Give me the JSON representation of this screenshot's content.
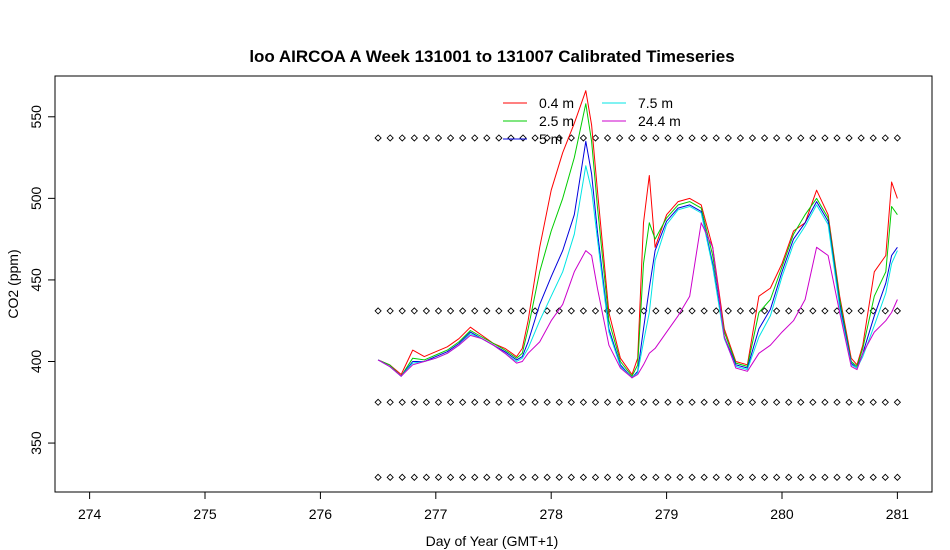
{
  "chart_data": {
    "type": "line",
    "title": "loo AIRCOA A  Week 131001 to 131007  Calibrated Timeseries",
    "xlabel": "Day of Year (GMT+1)",
    "ylabel": "CO2 (ppm)",
    "xlim": [
      273.7,
      281.3
    ],
    "ylim": [
      320,
      575
    ],
    "x_ticks": [
      274,
      275,
      276,
      277,
      278,
      279,
      280,
      281
    ],
    "y_ticks": [
      350,
      400,
      450,
      500,
      550
    ],
    "grid": false,
    "legend_position": "top-center",
    "series": [
      {
        "name": "0.4 m",
        "color": "#ff0000",
        "points": [
          [
            276.5,
            401
          ],
          [
            276.6,
            398
          ],
          [
            276.7,
            392
          ],
          [
            276.8,
            407
          ],
          [
            276.9,
            403
          ],
          [
            277.0,
            406
          ],
          [
            277.1,
            409
          ],
          [
            277.2,
            414
          ],
          [
            277.3,
            421
          ],
          [
            277.4,
            416
          ],
          [
            277.5,
            411
          ],
          [
            277.6,
            408
          ],
          [
            277.7,
            403
          ],
          [
            277.75,
            408
          ],
          [
            277.8,
            425
          ],
          [
            277.9,
            470
          ],
          [
            278.0,
            505
          ],
          [
            278.1,
            528
          ],
          [
            278.2,
            546
          ],
          [
            278.3,
            566
          ],
          [
            278.35,
            545
          ],
          [
            278.4,
            505
          ],
          [
            278.5,
            430
          ],
          [
            278.6,
            402
          ],
          [
            278.7,
            392
          ],
          [
            278.75,
            402
          ],
          [
            278.8,
            485
          ],
          [
            278.85,
            514
          ],
          [
            278.9,
            470
          ],
          [
            279.0,
            490
          ],
          [
            279.1,
            498
          ],
          [
            279.2,
            500
          ],
          [
            279.3,
            496
          ],
          [
            279.4,
            470
          ],
          [
            279.5,
            420
          ],
          [
            279.6,
            400
          ],
          [
            279.7,
            398
          ],
          [
            279.8,
            440
          ],
          [
            279.9,
            445
          ],
          [
            280.0,
            460
          ],
          [
            280.1,
            480
          ],
          [
            280.2,
            485
          ],
          [
            280.3,
            505
          ],
          [
            280.4,
            490
          ],
          [
            280.5,
            440
          ],
          [
            280.6,
            402
          ],
          [
            280.65,
            398
          ],
          [
            280.7,
            410
          ],
          [
            280.8,
            455
          ],
          [
            280.9,
            465
          ],
          [
            280.95,
            510
          ],
          [
            281.0,
            500
          ]
        ]
      },
      {
        "name": "2.5 m",
        "color": "#00cc00",
        "points": [
          [
            276.5,
            401
          ],
          [
            276.6,
            398
          ],
          [
            276.7,
            391
          ],
          [
            276.8,
            402
          ],
          [
            276.9,
            401
          ],
          [
            277.0,
            404
          ],
          [
            277.1,
            407
          ],
          [
            277.2,
            412
          ],
          [
            277.3,
            419
          ],
          [
            277.4,
            415
          ],
          [
            277.5,
            411
          ],
          [
            277.6,
            407
          ],
          [
            277.7,
            402
          ],
          [
            277.75,
            405
          ],
          [
            277.8,
            420
          ],
          [
            277.9,
            455
          ],
          [
            278.0,
            480
          ],
          [
            278.1,
            500
          ],
          [
            278.2,
            525
          ],
          [
            278.3,
            558
          ],
          [
            278.35,
            535
          ],
          [
            278.4,
            495
          ],
          [
            278.5,
            425
          ],
          [
            278.6,
            400
          ],
          [
            278.7,
            391
          ],
          [
            278.75,
            398
          ],
          [
            278.8,
            460
          ],
          [
            278.85,
            485
          ],
          [
            278.9,
            475
          ],
          [
            279.0,
            488
          ],
          [
            279.1,
            496
          ],
          [
            279.2,
            498
          ],
          [
            279.3,
            494
          ],
          [
            279.4,
            465
          ],
          [
            279.5,
            418
          ],
          [
            279.6,
            399
          ],
          [
            279.7,
            397
          ],
          [
            279.8,
            430
          ],
          [
            279.9,
            438
          ],
          [
            280.0,
            458
          ],
          [
            280.1,
            478
          ],
          [
            280.2,
            490
          ],
          [
            280.3,
            500
          ],
          [
            280.4,
            488
          ],
          [
            280.5,
            438
          ],
          [
            280.6,
            400
          ],
          [
            280.65,
            397
          ],
          [
            280.7,
            408
          ],
          [
            280.8,
            440
          ],
          [
            280.9,
            455
          ],
          [
            280.95,
            495
          ],
          [
            281.0,
            490
          ]
        ]
      },
      {
        "name": "5 m",
        "color": "#0000dd",
        "points": [
          [
            276.5,
            401
          ],
          [
            276.6,
            397
          ],
          [
            276.7,
            391
          ],
          [
            276.8,
            400
          ],
          [
            276.9,
            400
          ],
          [
            277.0,
            403
          ],
          [
            277.1,
            406
          ],
          [
            277.2,
            411
          ],
          [
            277.3,
            418
          ],
          [
            277.4,
            414
          ],
          [
            277.5,
            410
          ],
          [
            277.6,
            406
          ],
          [
            277.7,
            401
          ],
          [
            277.75,
            403
          ],
          [
            277.8,
            412
          ],
          [
            277.9,
            435
          ],
          [
            278.0,
            452
          ],
          [
            278.1,
            468
          ],
          [
            278.2,
            490
          ],
          [
            278.3,
            535
          ],
          [
            278.35,
            515
          ],
          [
            278.4,
            480
          ],
          [
            278.5,
            420
          ],
          [
            278.6,
            398
          ],
          [
            278.7,
            390
          ],
          [
            278.75,
            394
          ],
          [
            278.8,
            420
          ],
          [
            278.85,
            445
          ],
          [
            278.9,
            468
          ],
          [
            279.0,
            486
          ],
          [
            279.1,
            494
          ],
          [
            279.2,
            496
          ],
          [
            279.3,
            492
          ],
          [
            279.4,
            460
          ],
          [
            279.5,
            415
          ],
          [
            279.6,
            398
          ],
          [
            279.7,
            396
          ],
          [
            279.8,
            420
          ],
          [
            279.9,
            432
          ],
          [
            280.0,
            455
          ],
          [
            280.1,
            475
          ],
          [
            280.2,
            485
          ],
          [
            280.3,
            498
          ],
          [
            280.4,
            486
          ],
          [
            280.5,
            435
          ],
          [
            280.6,
            399
          ],
          [
            280.65,
            396
          ],
          [
            280.7,
            405
          ],
          [
            280.8,
            428
          ],
          [
            280.9,
            448
          ],
          [
            280.95,
            465
          ],
          [
            281.0,
            470
          ]
        ]
      },
      {
        "name": "7.5 m",
        "color": "#00e5e5",
        "points": [
          [
            276.5,
            401
          ],
          [
            276.6,
            397
          ],
          [
            276.7,
            391
          ],
          [
            276.8,
            399
          ],
          [
            276.9,
            400
          ],
          [
            277.0,
            402
          ],
          [
            277.1,
            405
          ],
          [
            277.2,
            410
          ],
          [
            277.3,
            417
          ],
          [
            277.4,
            414
          ],
          [
            277.5,
            410
          ],
          [
            277.6,
            405
          ],
          [
            277.7,
            400
          ],
          [
            277.75,
            402
          ],
          [
            277.8,
            408
          ],
          [
            277.9,
            425
          ],
          [
            278.0,
            440
          ],
          [
            278.1,
            455
          ],
          [
            278.2,
            478
          ],
          [
            278.3,
            520
          ],
          [
            278.35,
            505
          ],
          [
            278.4,
            475
          ],
          [
            278.5,
            418
          ],
          [
            278.6,
            397
          ],
          [
            278.7,
            390
          ],
          [
            278.75,
            393
          ],
          [
            278.8,
            412
          ],
          [
            278.85,
            430
          ],
          [
            278.9,
            462
          ],
          [
            279.0,
            484
          ],
          [
            279.1,
            493
          ],
          [
            279.2,
            495
          ],
          [
            279.3,
            491
          ],
          [
            279.4,
            458
          ],
          [
            279.5,
            414
          ],
          [
            279.6,
            397
          ],
          [
            279.7,
            395
          ],
          [
            279.8,
            415
          ],
          [
            279.9,
            428
          ],
          [
            280.0,
            452
          ],
          [
            280.1,
            472
          ],
          [
            280.2,
            483
          ],
          [
            280.3,
            496
          ],
          [
            280.4,
            484
          ],
          [
            280.5,
            433
          ],
          [
            280.6,
            398
          ],
          [
            280.65,
            396
          ],
          [
            280.7,
            403
          ],
          [
            280.8,
            422
          ],
          [
            280.9,
            442
          ],
          [
            280.95,
            460
          ],
          [
            281.0,
            468
          ]
        ]
      },
      {
        "name": "24.4 m",
        "color": "#cc00cc",
        "points": [
          [
            276.5,
            401
          ],
          [
            276.6,
            397
          ],
          [
            276.7,
            391
          ],
          [
            276.8,
            398
          ],
          [
            276.9,
            400
          ],
          [
            277.0,
            402
          ],
          [
            277.1,
            405
          ],
          [
            277.2,
            410
          ],
          [
            277.3,
            416
          ],
          [
            277.4,
            414
          ],
          [
            277.5,
            410
          ],
          [
            277.6,
            405
          ],
          [
            277.7,
            399
          ],
          [
            277.75,
            400
          ],
          [
            277.8,
            405
          ],
          [
            277.9,
            412
          ],
          [
            278.0,
            425
          ],
          [
            278.1,
            435
          ],
          [
            278.2,
            455
          ],
          [
            278.3,
            468
          ],
          [
            278.35,
            465
          ],
          [
            278.4,
            445
          ],
          [
            278.5,
            410
          ],
          [
            278.6,
            396
          ],
          [
            278.7,
            390
          ],
          [
            278.75,
            392
          ],
          [
            278.8,
            398
          ],
          [
            278.85,
            405
          ],
          [
            278.9,
            408
          ],
          [
            279.0,
            418
          ],
          [
            279.1,
            428
          ],
          [
            279.2,
            440
          ],
          [
            279.3,
            485
          ],
          [
            279.4,
            470
          ],
          [
            279.5,
            415
          ],
          [
            279.6,
            396
          ],
          [
            279.7,
            394
          ],
          [
            279.8,
            405
          ],
          [
            279.9,
            410
          ],
          [
            280.0,
            418
          ],
          [
            280.1,
            425
          ],
          [
            280.2,
            438
          ],
          [
            280.3,
            470
          ],
          [
            280.4,
            465
          ],
          [
            280.5,
            430
          ],
          [
            280.6,
            397
          ],
          [
            280.65,
            395
          ],
          [
            280.7,
            405
          ],
          [
            280.8,
            418
          ],
          [
            280.9,
            425
          ],
          [
            280.95,
            430
          ],
          [
            281.0,
            438
          ]
        ]
      }
    ],
    "marker_rows": {
      "symbol": "diamond-open",
      "color": "#000000",
      "y_levels": [
        537,
        431,
        375,
        329
      ],
      "x_start": 276.5,
      "x_end": 281.0,
      "count": 44
    }
  }
}
